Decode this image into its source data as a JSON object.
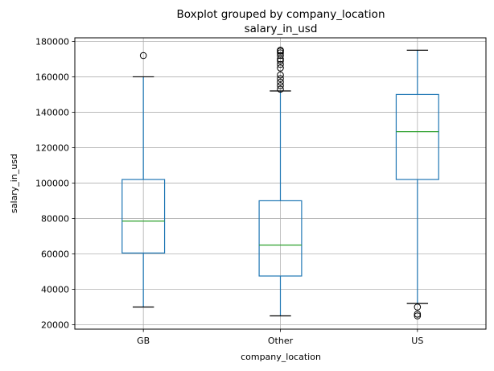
{
  "chart_data": {
    "type": "box",
    "title": "Boxplot grouped by company_location",
    "subtitle": "salary_in_usd",
    "xlabel": "company_location",
    "ylabel": "salary_in_usd",
    "ylim": [
      17500,
      182000
    ],
    "yticks": [
      20000,
      40000,
      60000,
      80000,
      100000,
      120000,
      140000,
      160000,
      180000
    ],
    "grid": true,
    "categories": [
      "GB",
      "Other",
      "US"
    ],
    "boxes": [
      {
        "category": "GB",
        "whisker_low": 30000,
        "q1": 60500,
        "median": 78500,
        "q3": 102000,
        "whisker_high": 160000,
        "outliers": [
          172000
        ]
      },
      {
        "category": "Other",
        "whisker_low": 25000,
        "q1": 47500,
        "median": 65000,
        "q3": 90000,
        "whisker_high": 152000,
        "outliers": [
          153000,
          155000,
          157000,
          159000,
          161000,
          165000,
          167000,
          169000,
          170000,
          172000,
          173500,
          174500,
          175000
        ]
      },
      {
        "category": "US",
        "whisker_low": 32000,
        "q1": 102000,
        "median": 129000,
        "q3": 150000,
        "whisker_high": 175000,
        "outliers": [
          30000,
          26000,
          25000
        ]
      }
    ],
    "colors": {
      "box": "#1f77b4",
      "median": "#2ca02c",
      "grid": "#b0b0b0",
      "outlier": "#000000"
    }
  }
}
